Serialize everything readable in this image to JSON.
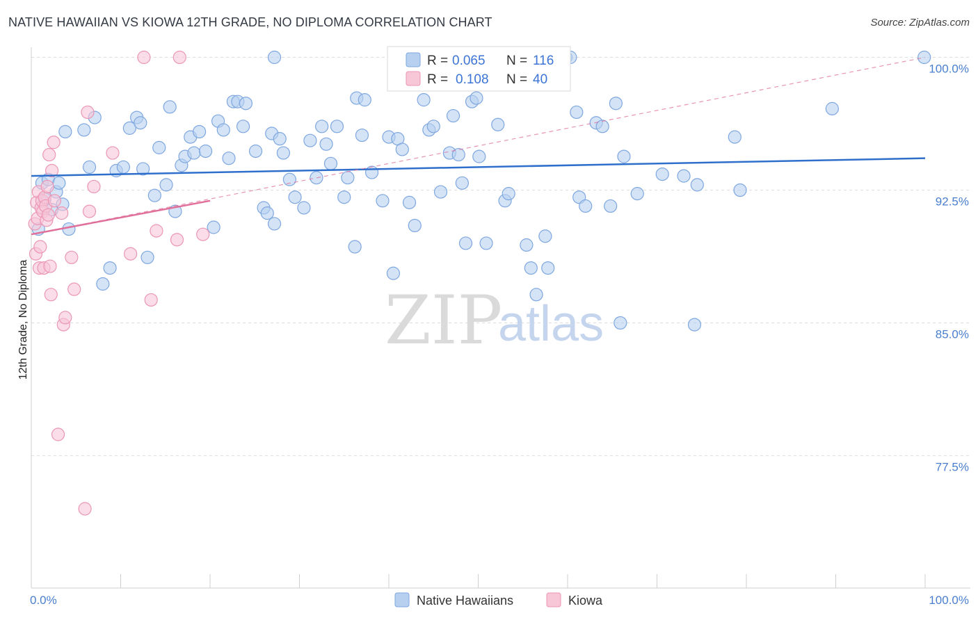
{
  "title": "NATIVE HAWAIIAN VS KIOWA 12TH GRADE, NO DIPLOMA CORRELATION CHART",
  "source": "Source: ZipAtlas.com",
  "watermark": {
    "zip": "ZIP",
    "atlas": "atlas"
  },
  "colors": {
    "blue_fill": "#b8d0f0",
    "blue_stroke": "#7ea7e0",
    "blue_line": "#2f6fcc",
    "pink_fill": "#f7c7d8",
    "pink_stroke": "#eb96b4",
    "pink_line": "#e0709a",
    "tick_text": "#4a7fd0",
    "grid": "#dcdcdc"
  },
  "legend": {
    "rows": [
      {
        "r_label": "R =",
        "r_value": "0.065",
        "n_label": "N =",
        "n_value": "116"
      },
      {
        "r_label": "R =",
        "r_value": "0.108",
        "n_label": "N =",
        "n_value": "40"
      }
    ]
  },
  "chart_data": {
    "type": "scatter",
    "title": "NATIVE HAWAIIAN VS KIOWA 12TH GRADE, NO DIPLOMA CORRELATION CHART",
    "xlabel": "",
    "ylabel": "12th Grade, No Diploma",
    "xlim": [
      0,
      100
    ],
    "ylim": [
      70,
      101
    ],
    "x_tick_labels": [
      "0.0%",
      "100.0%"
    ],
    "y_ticks": [
      77.5,
      85.0,
      92.5,
      100.0
    ],
    "y_tick_labels": [
      "77.5%",
      "85.0%",
      "92.5%",
      "100.0%"
    ],
    "grid": true,
    "legend_position": "bottom",
    "series": [
      {
        "name": "Native Hawaiians",
        "color": "#b8d0f0",
        "trend": {
          "x": [
            0,
            100
          ],
          "y": [
            93.3,
            94.3
          ]
        },
        "points": [
          [
            1.2,
            92.9
          ],
          [
            1.5,
            92.0
          ],
          [
            1.9,
            93.1
          ],
          [
            2.3,
            91.4
          ],
          [
            2.8,
            92.4
          ],
          [
            3.1,
            92.9
          ],
          [
            3.5,
            91.7
          ],
          [
            4.2,
            90.3
          ],
          [
            3.8,
            95.8
          ],
          [
            5.9,
            95.9
          ],
          [
            6.5,
            93.8
          ],
          [
            7.1,
            96.6
          ],
          [
            8.0,
            87.2
          ],
          [
            8.8,
            88.1
          ],
          [
            9.5,
            93.6
          ],
          [
            10.3,
            93.8
          ],
          [
            11.0,
            96.0
          ],
          [
            11.8,
            96.6
          ],
          [
            12.2,
            96.3
          ],
          [
            12.5,
            93.7
          ],
          [
            13.0,
            88.7
          ],
          [
            13.8,
            92.2
          ],
          [
            14.3,
            94.9
          ],
          [
            15.1,
            92.8
          ],
          [
            15.5,
            97.2
          ],
          [
            16.1,
            91.3
          ],
          [
            16.8,
            93.9
          ],
          [
            17.2,
            94.4
          ],
          [
            17.8,
            95.5
          ],
          [
            18.2,
            94.6
          ],
          [
            18.8,
            95.8
          ],
          [
            19.5,
            94.7
          ],
          [
            20.4,
            90.4
          ],
          [
            20.9,
            96.4
          ],
          [
            21.5,
            95.9
          ],
          [
            22.1,
            94.3
          ],
          [
            22.6,
            97.5
          ],
          [
            23.1,
            97.5
          ],
          [
            23.7,
            96.1
          ],
          [
            24.0,
            97.4
          ],
          [
            25.1,
            94.7
          ],
          [
            26.0,
            91.5
          ],
          [
            26.4,
            91.2
          ],
          [
            26.9,
            95.7
          ],
          [
            27.2,
            90.6
          ],
          [
            27.8,
            95.4
          ],
          [
            28.2,
            94.6
          ],
          [
            28.9,
            93.1
          ],
          [
            29.5,
            92.1
          ],
          [
            30.5,
            91.5
          ],
          [
            31.2,
            95.3
          ],
          [
            31.9,
            93.2
          ],
          [
            32.5,
            96.1
          ],
          [
            33.0,
            95.1
          ],
          [
            33.5,
            94.0
          ],
          [
            34.2,
            96.1
          ],
          [
            35.0,
            92.1
          ],
          [
            35.4,
            93.2
          ],
          [
            36.2,
            89.3
          ],
          [
            36.4,
            97.7
          ],
          [
            37.0,
            95.6
          ],
          [
            37.3,
            97.6
          ],
          [
            38.1,
            93.5
          ],
          [
            39.3,
            91.9
          ],
          [
            40.0,
            95.5
          ],
          [
            40.5,
            87.8
          ],
          [
            41.0,
            95.4
          ],
          [
            41.5,
            94.8
          ],
          [
            42.3,
            91.8
          ],
          [
            42.9,
            90.5
          ],
          [
            43.9,
            97.6
          ],
          [
            44.5,
            95.9
          ],
          [
            45.0,
            96.1
          ],
          [
            45.8,
            92.4
          ],
          [
            46.8,
            94.6
          ],
          [
            47.2,
            96.7
          ],
          [
            47.8,
            94.5
          ],
          [
            48.2,
            92.9
          ],
          [
            48.6,
            89.5
          ],
          [
            49.3,
            97.5
          ],
          [
            49.8,
            97.7
          ],
          [
            50.1,
            94.4
          ],
          [
            50.9,
            89.5
          ],
          [
            52.2,
            96.2
          ],
          [
            53.0,
            91.9
          ],
          [
            53.4,
            92.3
          ],
          [
            55.4,
            89.4
          ],
          [
            55.9,
            88.1
          ],
          [
            56.5,
            86.6
          ],
          [
            57.5,
            89.9
          ],
          [
            57.8,
            88.1
          ],
          [
            61.0,
            96.9
          ],
          [
            61.3,
            92.1
          ],
          [
            62.0,
            91.6
          ],
          [
            63.2,
            96.3
          ],
          [
            63.9,
            96.1
          ],
          [
            64.8,
            91.6
          ],
          [
            65.4,
            97.4
          ],
          [
            65.9,
            85.0
          ],
          [
            66.3,
            94.4
          ],
          [
            67.8,
            92.3
          ],
          [
            70.6,
            93.4
          ],
          [
            73.0,
            93.3
          ],
          [
            74.5,
            92.8
          ],
          [
            74.2,
            84.9
          ],
          [
            78.7,
            95.5
          ],
          [
            79.3,
            92.5
          ],
          [
            89.6,
            97.1
          ],
          [
            99.9,
            100.0
          ],
          [
            59.8,
            100.0
          ],
          [
            60.3,
            100.0
          ],
          [
            41.0,
            100.0
          ],
          [
            27.2,
            100.0
          ],
          [
            0.8,
            90.3
          ]
        ]
      },
      {
        "name": "Kiowa",
        "color": "#f7c7d8",
        "trend": {
          "x": [
            0,
            20
          ],
          "y": [
            90.0,
            91.9
          ]
        },
        "trend_extended": {
          "x": [
            0,
            100
          ],
          "y": [
            90.0,
            100.0
          ]
        },
        "points": [
          [
            0.4,
            90.6
          ],
          [
            0.5,
            88.9
          ],
          [
            0.6,
            91.8
          ],
          [
            0.7,
            90.9
          ],
          [
            0.8,
            92.4
          ],
          [
            0.9,
            88.1
          ],
          [
            1.0,
            89.3
          ],
          [
            1.1,
            91.5
          ],
          [
            1.2,
            91.9
          ],
          [
            1.3,
            91.3
          ],
          [
            1.4,
            88.1
          ],
          [
            1.5,
            92.1
          ],
          [
            1.6,
            91.6
          ],
          [
            1.7,
            90.8
          ],
          [
            1.8,
            92.7
          ],
          [
            1.9,
            91.1
          ],
          [
            2.0,
            94.5
          ],
          [
            2.1,
            88.2
          ],
          [
            2.2,
            86.6
          ],
          [
            2.3,
            93.6
          ],
          [
            2.5,
            95.2
          ],
          [
            2.6,
            91.9
          ],
          [
            3.0,
            78.7
          ],
          [
            3.4,
            91.2
          ],
          [
            3.6,
            84.9
          ],
          [
            3.8,
            85.3
          ],
          [
            4.5,
            88.7
          ],
          [
            4.8,
            86.9
          ],
          [
            6.3,
            96.9
          ],
          [
            6.5,
            91.3
          ],
          [
            7.0,
            92.7
          ],
          [
            9.1,
            94.6
          ],
          [
            11.1,
            88.9
          ],
          [
            12.6,
            100.0
          ],
          [
            13.4,
            86.3
          ],
          [
            14.0,
            90.2
          ],
          [
            16.3,
            89.7
          ],
          [
            16.6,
            100.0
          ],
          [
            19.2,
            90.0
          ],
          [
            6.0,
            74.5
          ]
        ]
      }
    ]
  }
}
